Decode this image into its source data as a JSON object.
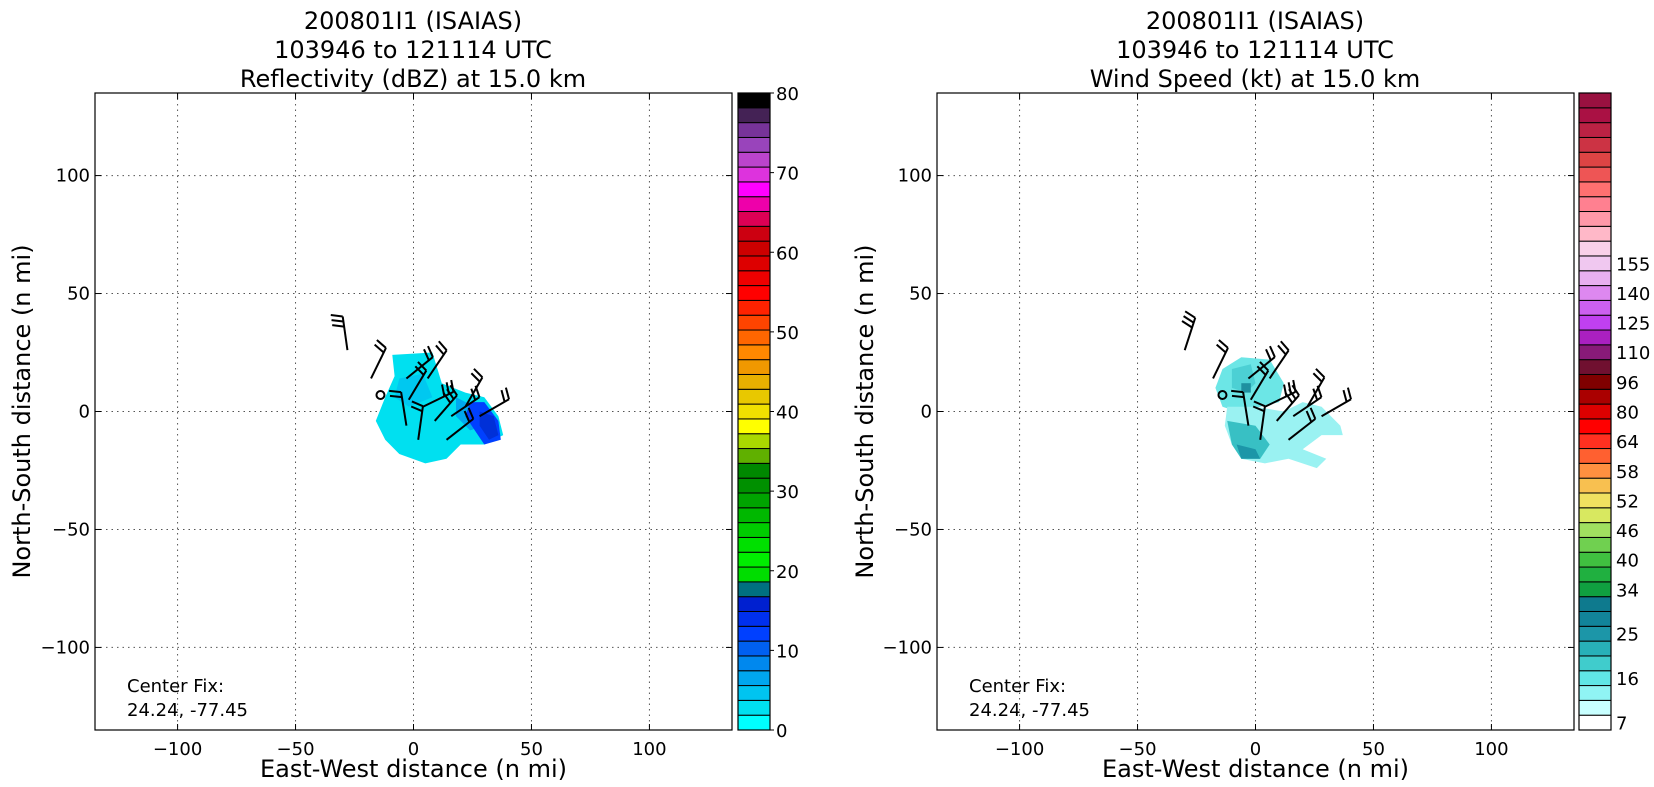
{
  "chart_data": [
    {
      "type": "heatmap",
      "title": [
        "200801I1 (ISAIAS)",
        "103946 to 121114 UTC",
        "Reflectivity (dBZ) at 15.0 km"
      ],
      "xlabel": "East-West distance (n mi)",
      "ylabel": "North-South distance (n mi)",
      "xlim": [
        -135,
        135
      ],
      "ylim": [
        -135,
        135
      ],
      "xticks": [
        -100,
        -50,
        0,
        50,
        100
      ],
      "yticks": [
        -100,
        -50,
        0,
        50,
        100
      ],
      "x_tick_labels": [
        "−100",
        "−50",
        "0",
        "50",
        "100"
      ],
      "y_tick_labels": [
        "−100",
        "−50",
        "0",
        "50",
        "100"
      ],
      "grid": true,
      "annotation": [
        "Center Fix:",
        "24.24, -77.45"
      ],
      "center_marker": [
        -14,
        7
      ],
      "colorbar": {
        "label_values": [
          0,
          10,
          20,
          30,
          40,
          50,
          60,
          70,
          80
        ],
        "labels": [
          "0",
          "10",
          "20",
          "30",
          "40",
          "50",
          "60",
          "70",
          "80"
        ],
        "colors": [
          "#00ffff",
          "#00e0f0",
          "#00c4f0",
          "#00a6ee",
          "#0088ee",
          "#0060f0",
          "#0040ff",
          "#0030ee",
          "#0020d0",
          "#007080",
          "#00dd00",
          "#00ee00",
          "#00e000",
          "#00cc00",
          "#00b800",
          "#00a400",
          "#009000",
          "#008800",
          "#60b000",
          "#aad800",
          "#ffff00",
          "#f0e000",
          "#e8c800",
          "#e8b000",
          "#f09800",
          "#ff8800",
          "#ff6600",
          "#ff4400",
          "#ff2200",
          "#ff0000",
          "#ee0000",
          "#dd0000",
          "#cc0000",
          "#cc0011",
          "#dd0055",
          "#ee00aa",
          "#ff00ff",
          "#dd33dd",
          "#bb44cc",
          "#9944bb",
          "#773399",
          "#442255",
          "#000000"
        ],
        "ticks_per_step": 5
      },
      "field_blobs": [
        {
          "polygon": [
            [
              -9,
              24
            ],
            [
              8,
              25
            ],
            [
              12,
              12
            ],
            [
              22,
              8
            ],
            [
              30,
              6
            ],
            [
              36,
              -2
            ],
            [
              38,
              -10
            ],
            [
              30,
              -14
            ],
            [
              20,
              -14
            ],
            [
              14,
              -20
            ],
            [
              5,
              -22
            ],
            [
              -6,
              -18
            ],
            [
              -12,
              -12
            ],
            [
              -16,
              -4
            ],
            [
              -12,
              6
            ],
            [
              -8,
              15
            ]
          ],
          "color": "#00e0f0"
        },
        {
          "polygon": [
            [
              -6,
              14
            ],
            [
              4,
              16
            ],
            [
              8,
              6
            ],
            [
              -2,
              2
            ],
            [
              -8,
              6
            ]
          ],
          "color": "#00c8f0"
        },
        {
          "polygon": [
            [
              18,
              6
            ],
            [
              26,
              2
            ],
            [
              30,
              -6
            ],
            [
              24,
              -8
            ],
            [
              18,
              -2
            ]
          ],
          "color": "#00a8ee"
        },
        {
          "polygon": [
            [
              24,
              4
            ],
            [
              30,
              4
            ],
            [
              36,
              -4
            ],
            [
              37,
              -12
            ],
            [
              30,
              -14
            ],
            [
              26,
              -8
            ],
            [
              22,
              -2
            ]
          ],
          "color": "#0040ff"
        },
        {
          "polygon": [
            [
              28,
              0
            ],
            [
              34,
              -2
            ],
            [
              36,
              -10
            ],
            [
              32,
              -12
            ],
            [
              28,
              -6
            ]
          ],
          "color": "#0030d8"
        }
      ],
      "wind_barbs": [
        [
          -28,
          26,
          30
        ],
        [
          -18,
          14,
          20
        ],
        [
          -3,
          14,
          15
        ],
        [
          6,
          14,
          15
        ],
        [
          -2,
          5,
          20
        ],
        [
          4,
          2,
          25
        ],
        [
          -3,
          -6,
          20
        ],
        [
          9,
          -4,
          25
        ],
        [
          16,
          -2,
          20
        ],
        [
          22,
          2,
          15
        ],
        [
          28,
          -2,
          15
        ],
        [
          2,
          -12,
          20
        ],
        [
          14,
          -12,
          20
        ]
      ]
    },
    {
      "type": "heatmap",
      "title": [
        "200801I1 (ISAIAS)",
        "103946 to 121114 UTC",
        "Wind Speed (kt) at 15.0 km"
      ],
      "xlabel": "East-West distance (n mi)",
      "ylabel": "North-South distance (n mi)",
      "xlim": [
        -135,
        135
      ],
      "ylim": [
        -135,
        135
      ],
      "xticks": [
        -100,
        -50,
        0,
        50,
        100
      ],
      "yticks": [
        -100,
        -50,
        0,
        50,
        100
      ],
      "x_tick_labels": [
        "−100",
        "−50",
        "0",
        "50",
        "100"
      ],
      "y_tick_labels": [
        "−100",
        "−50",
        "0",
        "50",
        "100"
      ],
      "grid": true,
      "annotation": [
        "Center Fix:",
        "24.24, -77.45"
      ],
      "center_marker": [
        -14,
        7
      ],
      "colorbar": {
        "labels": [
          "7",
          "16",
          "25",
          "34",
          "40",
          "46",
          "52",
          "58",
          "64",
          "80",
          "96",
          "110",
          "125",
          "140",
          "155"
        ],
        "label_index": [
          0,
          3,
          6,
          9,
          11,
          13,
          15,
          17,
          19,
          21,
          23,
          25,
          27,
          29,
          31
        ],
        "colors": [
          "#ffffff",
          "#c8ffff",
          "#90f4f4",
          "#60e6e6",
          "#40cccc",
          "#28b0b8",
          "#1c96a8",
          "#12849a",
          "#0e7a8e",
          "#10a040",
          "#20b040",
          "#40c040",
          "#70d050",
          "#a0e060",
          "#d8e860",
          "#f0e060",
          "#f8c050",
          "#ff9040",
          "#ff6030",
          "#ff3020",
          "#ff0000",
          "#dd0000",
          "#aa0000",
          "#800000",
          "#701030",
          "#881a78",
          "#aa20c0",
          "#c040f0",
          "#cc60f0",
          "#dd88f0",
          "#e8b0f0",
          "#f0c8f0",
          "#f8d0e8",
          "#ffb8c8",
          "#ff98a8",
          "#ff8090",
          "#ff7070",
          "#ee5555",
          "#dd4444",
          "#cc3344",
          "#bb2244",
          "#aa1144",
          "#991140"
        ]
      },
      "field_blobs": [
        {
          "polygon": [
            [
              -14,
              18
            ],
            [
              -6,
              23
            ],
            [
              6,
              22
            ],
            [
              12,
              12
            ],
            [
              10,
              4
            ],
            [
              2,
              2
            ],
            [
              -8,
              0
            ],
            [
              -14,
              2
            ],
            [
              -17,
              10
            ]
          ],
          "color": "#6ce6e6"
        },
        {
          "polygon": [
            [
              -12,
              2
            ],
            [
              0,
              2
            ],
            [
              12,
              0
            ],
            [
              20,
              4
            ],
            [
              28,
              2
            ],
            [
              36,
              -6
            ],
            [
              37,
              -10
            ],
            [
              28,
              -10
            ],
            [
              20,
              -16
            ],
            [
              30,
              -20
            ],
            [
              26,
              -24
            ],
            [
              14,
              -20
            ],
            [
              4,
              -22
            ],
            [
              -6,
              -20
            ],
            [
              -10,
              -14
            ],
            [
              -13,
              -6
            ]
          ],
          "color": "#9af2f2"
        },
        {
          "polygon": [
            [
              -12,
              -4
            ],
            [
              0,
              -6
            ],
            [
              6,
              -14
            ],
            [
              2,
              -20
            ],
            [
              -6,
              -20
            ],
            [
              -10,
              -14
            ]
          ],
          "color": "#38c0c4"
        },
        {
          "polygon": [
            [
              -8,
              -14
            ],
            [
              0,
              -16
            ],
            [
              2,
              -20
            ],
            [
              -6,
              -20
            ]
          ],
          "color": "#1c96a8"
        },
        {
          "polygon": [
            [
              -10,
              18
            ],
            [
              -2,
              20
            ],
            [
              0,
              12
            ],
            [
              -4,
              8
            ],
            [
              -10,
              10
            ]
          ],
          "color": "#4cd0d4"
        },
        {
          "polygon": [
            [
              -6,
              12
            ],
            [
              -2,
              12
            ],
            [
              -2,
              8
            ],
            [
              -6,
              8
            ]
          ],
          "color": "#1e90a0"
        }
      ],
      "wind_barbs": [
        [
          -30,
          26,
          30
        ],
        [
          -18,
          14,
          20
        ],
        [
          -3,
          14,
          15
        ],
        [
          6,
          14,
          15
        ],
        [
          -2,
          5,
          20
        ],
        [
          4,
          2,
          25
        ],
        [
          -3,
          -6,
          20
        ],
        [
          9,
          -4,
          25
        ],
        [
          16,
          -2,
          20
        ],
        [
          22,
          2,
          15
        ],
        [
          28,
          -2,
          15
        ],
        [
          2,
          -12,
          20
        ],
        [
          14,
          -12,
          20
        ]
      ]
    }
  ]
}
